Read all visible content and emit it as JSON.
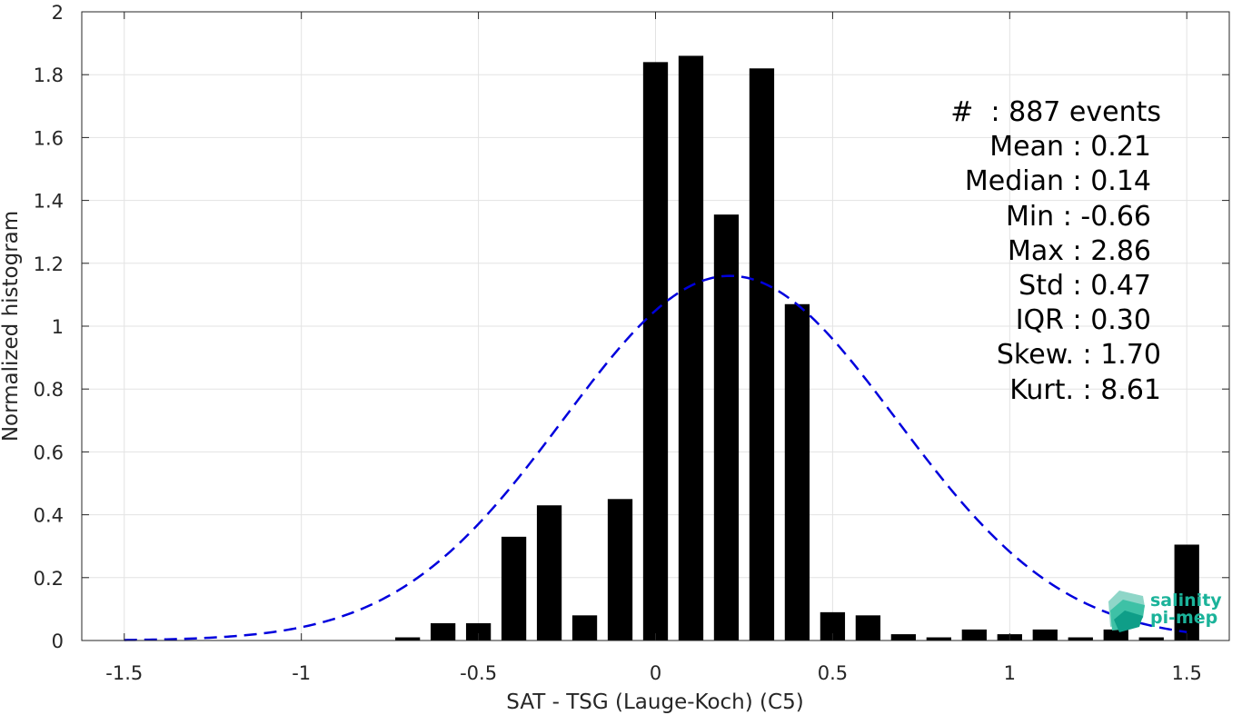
{
  "chart_data": {
    "type": "bar",
    "xlabel": "SAT - TSG (Lauge-Koch) (C5)",
    "ylabel": "Normalized histogram",
    "xlim": [
      -1.62,
      1.62
    ],
    "ylim": [
      0,
      2
    ],
    "grid": true,
    "xticks": [
      -1.5,
      -1,
      -0.5,
      0,
      0.5,
      1,
      1.5
    ],
    "xtick_labels": [
      "-1.5",
      "-1",
      "-0.5",
      "0",
      "0.5",
      "1",
      "1.5"
    ],
    "yticks": [
      0,
      0.2,
      0.4,
      0.6,
      0.8,
      1,
      1.2,
      1.4,
      1.6,
      1.8,
      2
    ],
    "ytick_labels": [
      "0",
      "0.2",
      "0.4",
      "0.6",
      "0.8",
      "1",
      "1.2",
      "1.4",
      "1.6",
      "1.8",
      "2"
    ],
    "bar_width": 0.07,
    "bar_color": "#000000",
    "bars": {
      "x": [
        -0.7,
        -0.6,
        -0.5,
        -0.4,
        -0.3,
        -0.2,
        -0.1,
        0.0,
        0.1,
        0.2,
        0.3,
        0.4,
        0.5,
        0.6,
        0.7,
        0.8,
        0.9,
        1.0,
        1.1,
        1.2,
        1.3,
        1.4,
        1.5
      ],
      "values": [
        0.01,
        0.055,
        0.055,
        0.33,
        0.43,
        0.08,
        0.45,
        1.84,
        1.86,
        1.355,
        1.82,
        1.07,
        0.09,
        0.08,
        0.02,
        0.01,
        0.035,
        0.02,
        0.035,
        0.01,
        0.035,
        0.01,
        0.305
      ]
    },
    "fit_curve": {
      "kind": "gaussian",
      "mean": 0.21,
      "std": 0.47,
      "peak": 1.16,
      "color": "#0000dd",
      "style": "dashed",
      "x_range": [
        -1.5,
        1.5
      ]
    }
  },
  "stats": [
    {
      "label": "#  : 887 events"
    },
    {
      "label": "Mean : 0.21"
    },
    {
      "label": "Median : 0.14"
    },
    {
      "label": "Min : -0.66"
    },
    {
      "label": "Max : 2.86"
    },
    {
      "label": "Std : 0.47"
    },
    {
      "label": "IQR : 0.30"
    },
    {
      "label": "Skew. : 1.70"
    },
    {
      "label": "Kurt. : 8.61"
    }
  ],
  "logo": {
    "line1": "salinity",
    "line2": "pi-mep",
    "color": "#1bb39a"
  }
}
